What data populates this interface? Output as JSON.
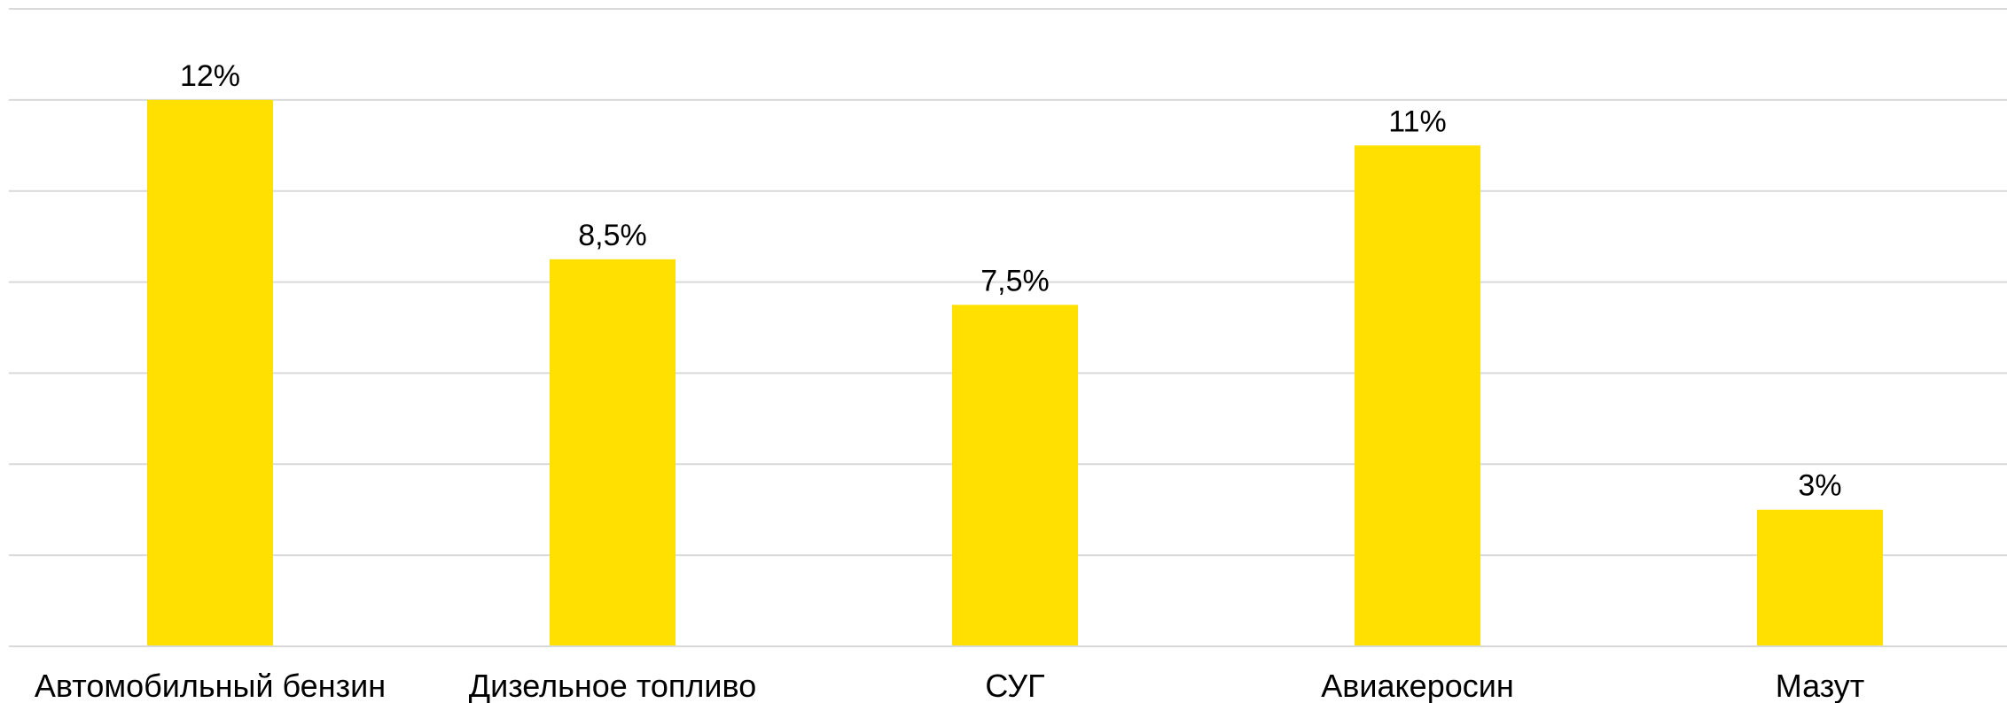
{
  "chart_data": {
    "type": "bar",
    "categories": [
      "Автомобильный бензин",
      "Дизельное топливо",
      "СУГ",
      "Авиакеросин",
      "Мазут"
    ],
    "values": [
      12,
      8.5,
      7.5,
      11,
      3
    ],
    "data_labels": [
      "12%",
      "8,5%",
      "7,5%",
      "11%",
      "3%"
    ],
    "title": "",
    "xlabel": "",
    "ylabel": "",
    "ylim": [
      0,
      14
    ],
    "grid": true,
    "legend": "none",
    "colors": {
      "bar": "#FFE000",
      "grid": "#D9D9D9",
      "text": "#000000"
    }
  }
}
